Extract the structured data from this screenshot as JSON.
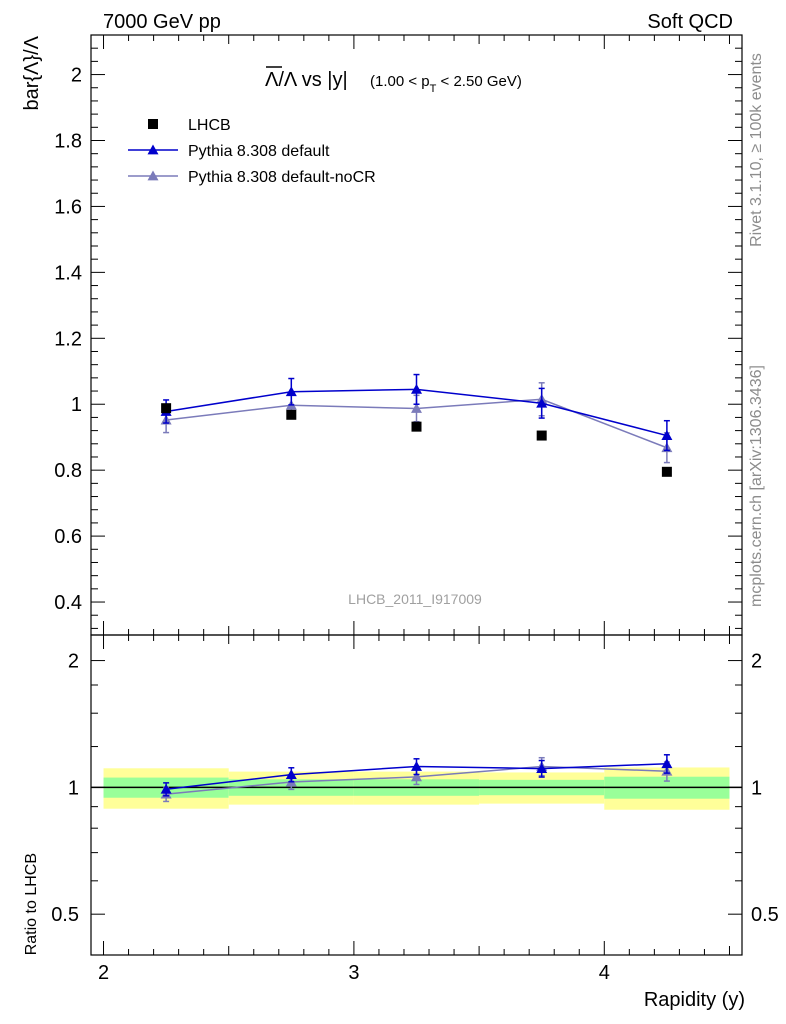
{
  "header": {
    "energy": "7000 GeV pp",
    "category": "Soft QCD"
  },
  "side_text": {
    "rivet": "Rivet 3.1.10, ≥ 100k events",
    "source": "mcplots.cern.ch [arXiv:1306.3436]"
  },
  "chart_data": {
    "type": "line",
    "title_main": "Λ/Λ vs |y|",
    "title_sub": "(1.00 < p_T < 2.50 GeV)",
    "analysis_label": "LHCB_2011_I917009",
    "ylabel": "bar{Λ}/Λ",
    "ratio_ylabel": "Ratio to LHCB",
    "xlabel": "Rapidity (y)",
    "xlim": [
      1.95,
      4.55
    ],
    "ylim": [
      0.3,
      2.12
    ],
    "ratio_ylim": [
      0.4,
      2.3
    ],
    "log_scale_ratio_y": true,
    "x_ticks": [
      "2",
      "3",
      "4"
    ],
    "y_ticks": [
      "0.4",
      "0.6",
      "0.8",
      "1",
      "1.2",
      "1.4",
      "1.6",
      "1.8",
      "2"
    ],
    "ratio_y_ticks": [
      "0.5",
      "1",
      "2"
    ],
    "legend": {
      "placement": "top-left"
    },
    "bins": [
      [
        2.0,
        2.5
      ],
      [
        2.5,
        3.0
      ],
      [
        3.0,
        3.5
      ],
      [
        3.5,
        4.0
      ],
      [
        4.0,
        4.5
      ]
    ],
    "series": [
      {
        "name": "LHCB",
        "marker": "square",
        "color": "#000000",
        "x": [
          2.25,
          2.75,
          3.25,
          3.75,
          4.25
        ],
        "y": [
          0.988,
          0.968,
          0.932,
          0.905,
          0.795
        ],
        "yerr": [
          0.0,
          0.0,
          0.0,
          0.0,
          0.0
        ],
        "band_green": [
          0.055,
          0.045,
          0.045,
          0.042,
          0.06
        ],
        "band_yellow": [
          0.11,
          0.09,
          0.09,
          0.085,
          0.115
        ]
      },
      {
        "name": "Pythia 8.308 default",
        "marker": "triangle",
        "color": "#0000cc",
        "x": [
          2.25,
          2.75,
          3.25,
          3.75,
          4.25
        ],
        "y": [
          0.978,
          1.038,
          1.045,
          1.003,
          0.905
        ],
        "yerr": [
          0.035,
          0.04,
          0.045,
          0.045,
          0.045
        ],
        "ratio": [
          0.99,
          1.072,
          1.121,
          1.108,
          1.138
        ],
        "ratio_err": [
          0.035,
          0.041,
          0.048,
          0.05,
          0.057
        ]
      },
      {
        "name": "Pythia 8.308 default-noCR",
        "marker": "triangle",
        "color": "#7b7bba",
        "x": [
          2.25,
          2.75,
          3.25,
          3.75,
          4.25
        ],
        "y": [
          0.952,
          0.997,
          0.987,
          1.015,
          0.868
        ],
        "yerr": [
          0.038,
          0.04,
          0.04,
          0.05,
          0.045
        ],
        "ratio": [
          0.964,
          1.03,
          1.059,
          1.121,
          1.092
        ],
        "ratio_err": [
          0.038,
          0.041,
          0.043,
          0.055,
          0.057
        ]
      }
    ]
  }
}
